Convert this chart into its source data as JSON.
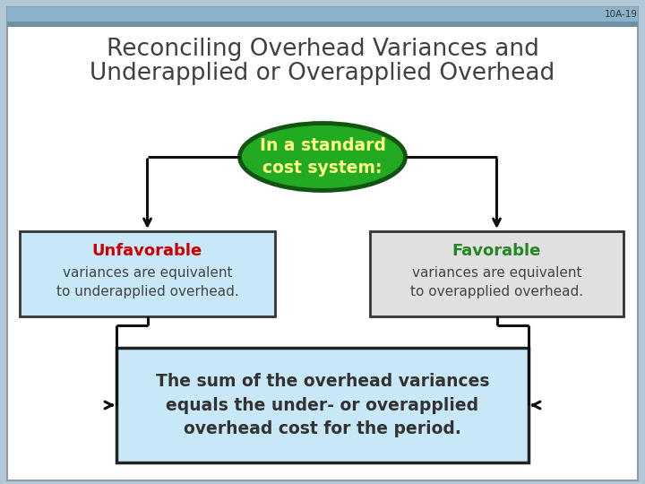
{
  "bg_color": "#b0c8d8",
  "header_bar_color": "#8ab4cc",
  "header_bar2_color": "#7090a8",
  "slide_bg": "#ffffff",
  "label_10a19": "10A-19",
  "title_line1": "Reconciling Overhead Variances and",
  "title_line2": "Underapplied or Overapplied Overhead",
  "title_color": "#404040",
  "center_ellipse_fill": "#22aa22",
  "center_ellipse_border": "#115511",
  "center_text": "In a standard\ncost system:",
  "center_text_color": "#ffff88",
  "left_box_fill": "#c8e8f8",
  "left_box_border": "#333333",
  "left_title": "Unfavorable",
  "left_title_color": "#cc0000",
  "left_body": "variances are equivalent\nto underapplied overhead.",
  "left_body_color": "#444444",
  "right_box_fill": "#e0e0e0",
  "right_box_border": "#333333",
  "right_title": "Favorable",
  "right_title_color": "#228822",
  "right_body": "variances are equivalent\nto overapplied overhead.",
  "right_body_color": "#444444",
  "bottom_box_fill": "#c8e8f8",
  "bottom_box_border": "#222222",
  "bottom_text": "The sum of the overhead variances\nequals the under- or overapplied\noverhead cost for the period.",
  "bottom_text_color": "#333333",
  "arrow_color": "#111111",
  "figw": 7.2,
  "figh": 5.4,
  "dpi": 100
}
